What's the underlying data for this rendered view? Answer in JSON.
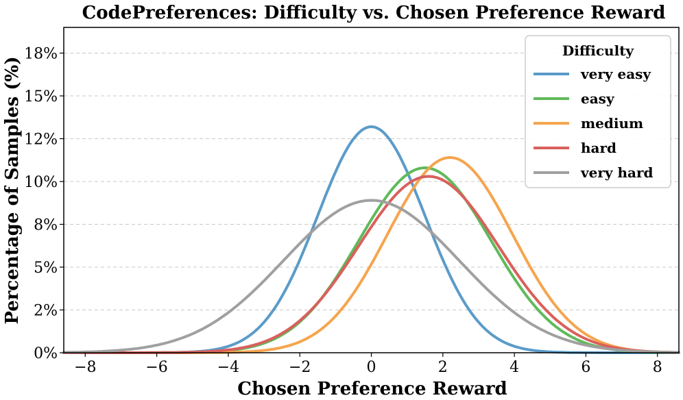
{
  "chart_data": {
    "type": "line",
    "title": "CodePreferences: Difficulty vs. Chosen Preference Reward",
    "xlabel": "Chosen Preference Reward",
    "ylabel": "Percentage of Samples (%)",
    "xlim": [
      -8.6,
      8.6
    ],
    "ylim": [
      0,
      19
    ],
    "xticks": [
      -8,
      -6,
      -4,
      -2,
      0,
      2,
      4,
      6,
      8
    ],
    "xtick_labels": [
      "−8",
      "−6",
      "−4",
      "−2",
      "0",
      "2",
      "4",
      "6",
      "8"
    ],
    "yticks": [
      0,
      2.5,
      5,
      7.5,
      10,
      12.5,
      15,
      17.5
    ],
    "ytick_labels": [
      "0%",
      "2%",
      "5%",
      "8%",
      "10%",
      "12%",
      "15%",
      "18%"
    ],
    "grid": "horizontal-dashed",
    "legend": {
      "title": "Difficulty",
      "position": "top-right"
    },
    "series": [
      {
        "name": "very easy",
        "color": "#5b9bc9",
        "mean": 0.0,
        "std": 1.5,
        "peak": 13.2
      },
      {
        "name": "easy",
        "color": "#5fba5a",
        "mean": 1.5,
        "std": 1.85,
        "peak": 10.8
      },
      {
        "name": "medium",
        "color": "#f5a54e",
        "mean": 2.2,
        "std": 1.75,
        "peak": 11.4
      },
      {
        "name": "hard",
        "color": "#d9605c",
        "mean": 1.6,
        "std": 1.95,
        "peak": 10.3
      },
      {
        "name": "very hard",
        "color": "#a0a0a0",
        "mean": 0.0,
        "std": 2.45,
        "peak": 8.9
      }
    ]
  }
}
